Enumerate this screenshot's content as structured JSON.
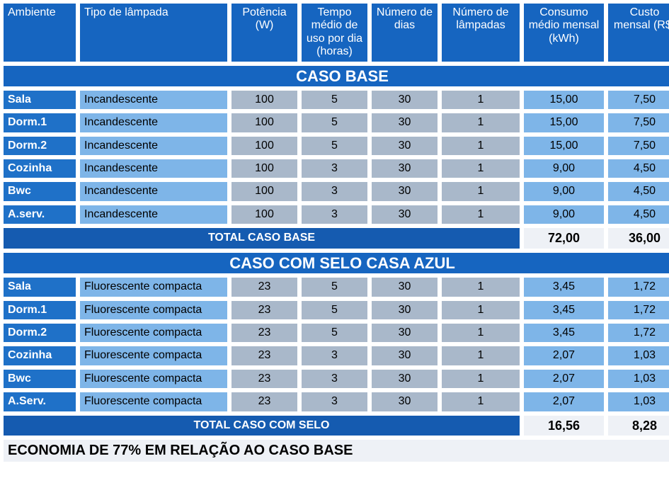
{
  "colors": {
    "header_bg": "#1665c0",
    "section_bg": "#1665c0",
    "room_bg": "#1f71c8",
    "type_bg": "#7eb5e8",
    "num_bg": "#a9b8ca",
    "result_bg": "#7eb5e8",
    "total_label_bg": "#155bb0",
    "total_val_bg": "#eef1f6",
    "econ_bg": "#eef1f6",
    "text_light": "#ffffff",
    "text_dark": "#000000"
  },
  "headers": {
    "c1": "Ambiente",
    "c2": "Tipo de lâmpada",
    "c3": "Potência (W)",
    "c4": "Tempo médio de uso por dia (horas)",
    "c5": "Número de dias",
    "c6": "Número de lâmpadas",
    "c7": "Consumo médio mensal (kWh)",
    "c8": "Custo mensal (R$)"
  },
  "sections": {
    "base": {
      "title": "CASO BASE",
      "rows": [
        {
          "room": "Sala",
          "type": "Incandescente",
          "pot": "100",
          "tempo": "5",
          "dias": "30",
          "num": "1",
          "consumo": "15,00",
          "custo": "7,50"
        },
        {
          "room": "Dorm.1",
          "type": "Incandescente",
          "pot": "100",
          "tempo": "5",
          "dias": "30",
          "num": "1",
          "consumo": "15,00",
          "custo": "7,50"
        },
        {
          "room": "Dorm.2",
          "type": "Incandescente",
          "pot": "100",
          "tempo": "5",
          "dias": "30",
          "num": "1",
          "consumo": "15,00",
          "custo": "7,50"
        },
        {
          "room": "Cozinha",
          "type": "Incandescente",
          "pot": "100",
          "tempo": "3",
          "dias": "30",
          "num": "1",
          "consumo": "9,00",
          "custo": "4,50"
        },
        {
          "room": "Bwc",
          "type": "Incandescente",
          "pot": "100",
          "tempo": "3",
          "dias": "30",
          "num": "1",
          "consumo": "9,00",
          "custo": "4,50"
        },
        {
          "room": "A.serv.",
          "type": "Incandescente",
          "pot": "100",
          "tempo": "3",
          "dias": "30",
          "num": "1",
          "consumo": "9,00",
          "custo": "4,50"
        }
      ],
      "total_label": "TOTAL CASO BASE",
      "total_consumo": "72,00",
      "total_custo": "36,00"
    },
    "selo": {
      "title": "CASO COM SELO CASA AZUL",
      "rows": [
        {
          "room": "Sala",
          "type": "Fluorescente compacta",
          "pot": "23",
          "tempo": "5",
          "dias": "30",
          "num": "1",
          "consumo": "3,45",
          "custo": "1,72"
        },
        {
          "room": "Dorm.1",
          "type": "Fluorescente compacta",
          "pot": "23",
          "tempo": "5",
          "dias": "30",
          "num": "1",
          "consumo": "3,45",
          "custo": "1,72"
        },
        {
          "room": "Dorm.2",
          "type": "Fluorescente compacta",
          "pot": "23",
          "tempo": "5",
          "dias": "30",
          "num": "1",
          "consumo": "3,45",
          "custo": "1,72"
        },
        {
          "room": "Cozinha",
          "type": "Fluorescente compacta",
          "pot": "23",
          "tempo": "3",
          "dias": "30",
          "num": "1",
          "consumo": "2,07",
          "custo": "1,03"
        },
        {
          "room": "Bwc",
          "type": "Fluorescente compacta",
          "pot": "23",
          "tempo": "3",
          "dias": "30",
          "num": "1",
          "consumo": "2,07",
          "custo": "1,03"
        },
        {
          "room": "A.Serv.",
          "type": "Fluorescente compacta",
          "pot": "23",
          "tempo": "3",
          "dias": "30",
          "num": "1",
          "consumo": "2,07",
          "custo": "1,03"
        }
      ],
      "total_label": "TOTAL CASO COM SELO",
      "total_consumo": "16,56",
      "total_custo": "8,28"
    }
  },
  "economy": "ECONOMIA DE 77% EM RELAÇÃO AO CASO BASE"
}
